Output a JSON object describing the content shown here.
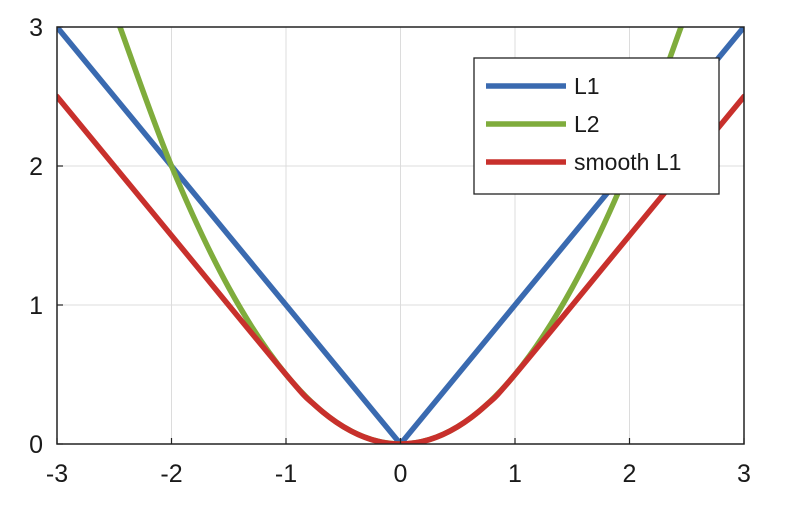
{
  "chart_data": {
    "type": "line",
    "title": "",
    "xlabel": "",
    "ylabel": "",
    "xlim": [
      -3,
      3
    ],
    "ylim": [
      0,
      3
    ],
    "x_ticks": [
      -3,
      -2,
      -1,
      0,
      1,
      2,
      3
    ],
    "y_ticks": [
      0,
      1,
      2,
      3
    ],
    "x_tick_labels": [
      "-3",
      "-2",
      "-1",
      "0",
      "1",
      "2",
      "3"
    ],
    "y_tick_labels": [
      "0",
      "1",
      "2",
      "3"
    ],
    "grid": true,
    "legend_position": "top-right",
    "series": [
      {
        "name": "L1",
        "color": "#3a6ab0",
        "x": [
          -3,
          -2,
          -1,
          0,
          1,
          2,
          3
        ],
        "y": [
          3,
          2,
          1,
          0,
          1,
          2,
          3
        ]
      },
      {
        "name": "L2",
        "color": "#7fac3c",
        "x": [
          -2.45,
          -2,
          -1.5,
          -1,
          -0.5,
          0,
          0.5,
          1,
          1.5,
          2,
          2.45
        ],
        "y": [
          3,
          2,
          1.125,
          0.5,
          0.125,
          0,
          0.125,
          0.5,
          1.125,
          2,
          3
        ]
      },
      {
        "name": "smooth L1",
        "color": "#c8302c",
        "x": [
          -3,
          -2,
          -1,
          -0.75,
          -0.5,
          -0.25,
          0,
          0.25,
          0.5,
          0.75,
          1,
          2,
          3
        ],
        "y": [
          2.5,
          1.5,
          0.5,
          0.281,
          0.125,
          0.031,
          0,
          0.031,
          0.125,
          0.281,
          0.5,
          1.5,
          2.5
        ]
      }
    ]
  }
}
